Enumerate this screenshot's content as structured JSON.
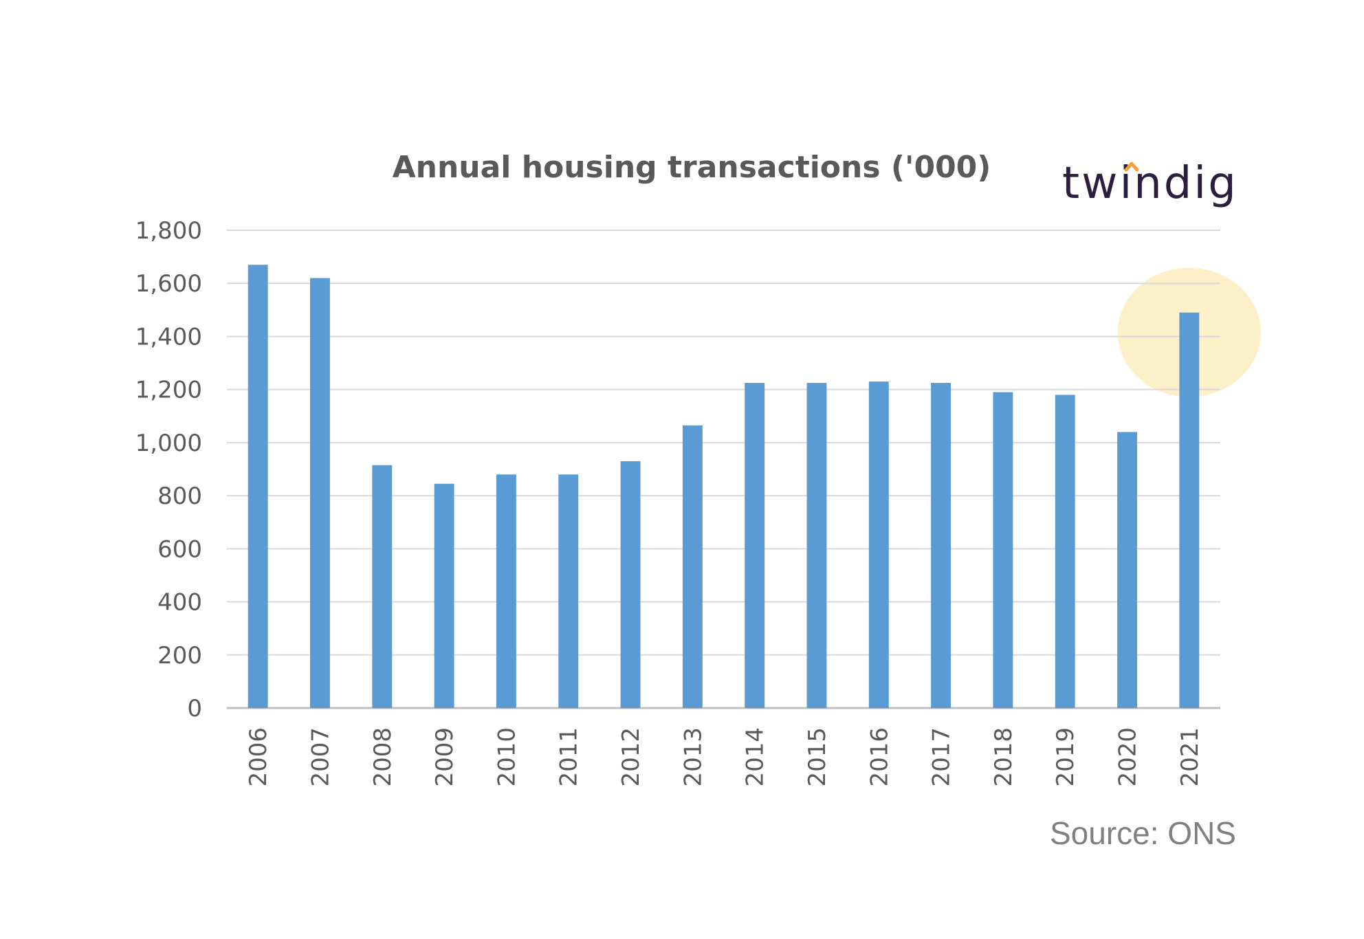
{
  "logo": {
    "text": "twindig",
    "accent_color": "#f5a03c"
  },
  "source_text": "Source: ONS",
  "chart_data": {
    "type": "bar",
    "title": "Annual housing transactions ('000)",
    "xlabel": "",
    "ylabel": "",
    "ylim": [
      0,
      1800
    ],
    "yticks": [
      0,
      200,
      400,
      600,
      800,
      1000,
      1200,
      1400,
      1600,
      1800
    ],
    "ytick_labels": [
      "0",
      "200",
      "400",
      "600",
      "800",
      "1,000",
      "1,200",
      "1,400",
      "1,600",
      "1,800"
    ],
    "categories": [
      "2006",
      "2007",
      "2008",
      "2009",
      "2010",
      "2011",
      "2012",
      "2013",
      "2014",
      "2015",
      "2016",
      "2017",
      "2018",
      "2019",
      "2020",
      "2021"
    ],
    "values": [
      1670,
      1620,
      915,
      845,
      880,
      880,
      930,
      1065,
      1225,
      1225,
      1230,
      1225,
      1190,
      1180,
      1040,
      1490
    ],
    "bar_color": "#5b9bd5",
    "gridlines": true,
    "highlight": {
      "category": "2021",
      "color": "#fdf0c8"
    }
  }
}
